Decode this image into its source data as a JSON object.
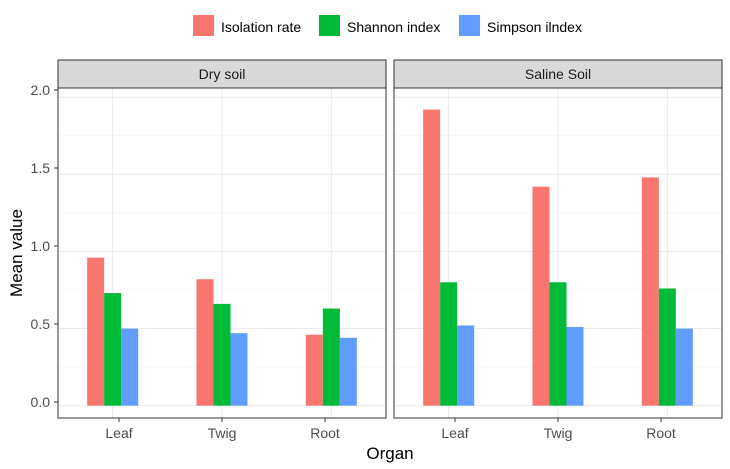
{
  "chart_data": {
    "type": "bar",
    "facets": [
      "Dry soil",
      "Saline Soil"
    ],
    "categories": [
      "Leaf",
      "Twig",
      "Root"
    ],
    "series": [
      {
        "name": "Isolation rate",
        "color": "#F8766D",
        "values": {
          "Dry soil": [
            0.96,
            0.82,
            0.46
          ],
          "Saline Soil": [
            1.92,
            1.42,
            1.48
          ]
        }
      },
      {
        "name": "Shannon index",
        "color": "#00BA38",
        "values": {
          "Dry soil": [
            0.73,
            0.66,
            0.63
          ],
          "Saline Soil": [
            0.8,
            0.8,
            0.76
          ]
        }
      },
      {
        "name": "Simpson ilndex",
        "color": "#619CFF",
        "values": {
          "Dry soil": [
            0.5,
            0.47,
            0.44
          ],
          "Saline Soil": [
            0.52,
            0.51,
            0.5
          ]
        }
      }
    ],
    "xlabel": "Organ",
    "ylabel": "Mean value",
    "ylim": [
      -0.08,
      2.06
    ],
    "yticks": [
      "0.0",
      "0.5",
      "1.0",
      "1.5",
      "2.0"
    ],
    "legend_position": "top",
    "grid": true
  }
}
